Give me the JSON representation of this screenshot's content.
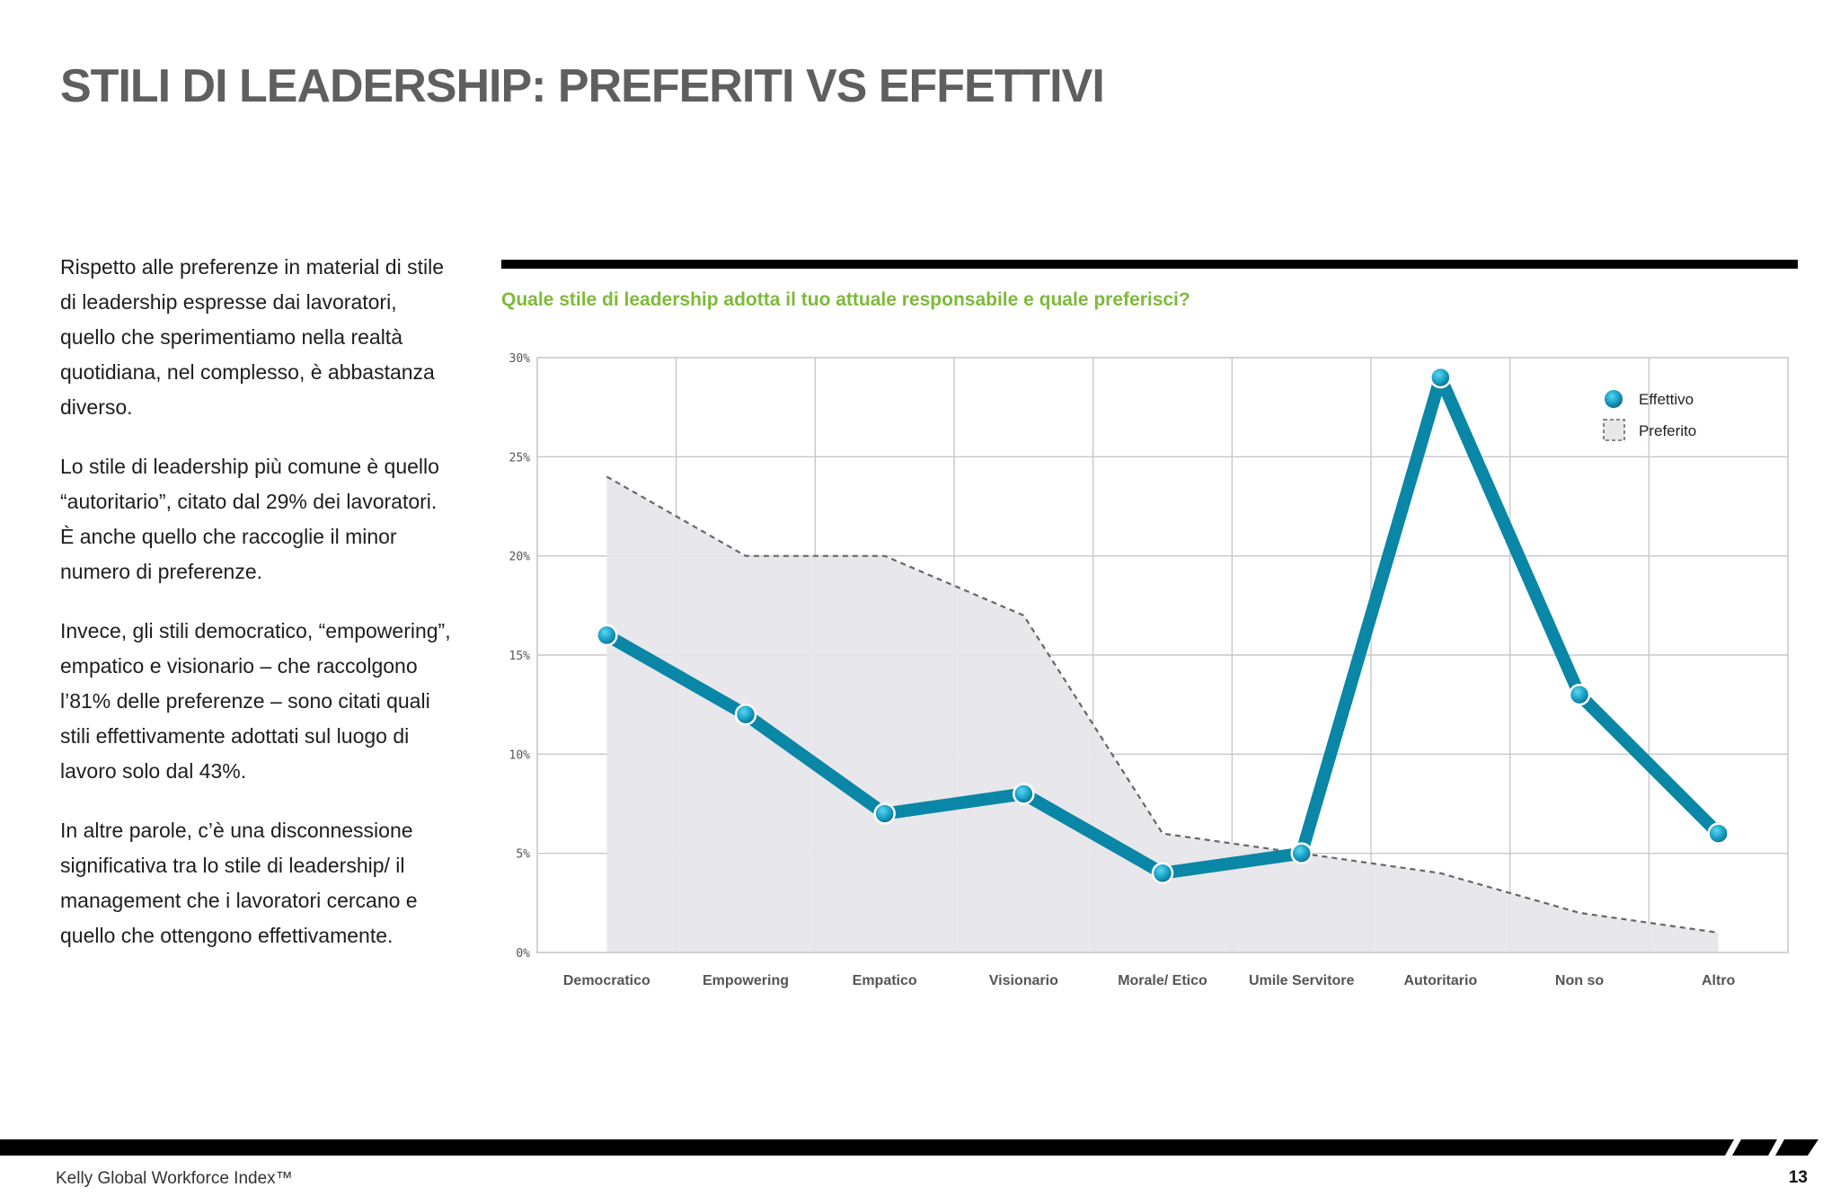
{
  "page": {
    "title": "STILI DI LEADERSHIP: PREFERITI VS EFFETTIVI",
    "paragraphs": [
      "Rispetto alle preferenze in material di stile di leadership espresse dai lavoratori, quello che sperimentiamo nella realtà quotidiana, nel complesso, è abbastanza diverso.",
      "Lo stile di leadership più comune è quello “autoritario”, citato dal 29% dei lavoratori. È anche quello che raccoglie il minor numero di preferenze.",
      "Invece, gli stili democratico, “empowering”, empatico e visionario – che raccolgono l’81% delle preferenze – sono citati quali stili effettivamente adottati sul luogo di lavoro solo dal 43%.",
      "In altre parole, c’è una disconnessione significativa tra lo stile di leadership/ il management che i lavoratori cercano e quello che ottengono effettivamente."
    ]
  },
  "chart_data": {
    "type": "line",
    "title": "Quale stile di leadership adotta il tuo attuale responsabile e quale preferisci?",
    "categories": [
      "Democratico",
      "Empowering",
      "Empatico",
      "Visionario",
      "Morale/ Etico",
      "Umile Servitore",
      "Autoritario",
      "Non so",
      "Altro"
    ],
    "series": [
      {
        "name": "Effettivo",
        "style": "solid-line-with-markers",
        "color": "#0a86a6",
        "values": [
          16,
          12,
          7,
          8,
          4,
          5,
          29,
          13,
          6
        ]
      },
      {
        "name": "Preferito",
        "style": "dashed-line-with-shaded-area",
        "color": "#666666",
        "fill": "#e6e5e9",
        "values": [
          24,
          20,
          20,
          17,
          6,
          5,
          4,
          2,
          1
        ]
      }
    ],
    "y_ticks": [
      "0%",
      "5%",
      "10%",
      "15%",
      "20%",
      "25%",
      "30%"
    ],
    "ylim": [
      0,
      30
    ],
    "xlabel": "",
    "ylabel": "",
    "grid": true,
    "legend_position": "top-right"
  },
  "footer": {
    "source": "Kelly Global Workforce Index™",
    "page_number": "13"
  },
  "colors": {
    "title": "#5f5f5f",
    "question": "#7dba3a",
    "rule": "#000000"
  }
}
